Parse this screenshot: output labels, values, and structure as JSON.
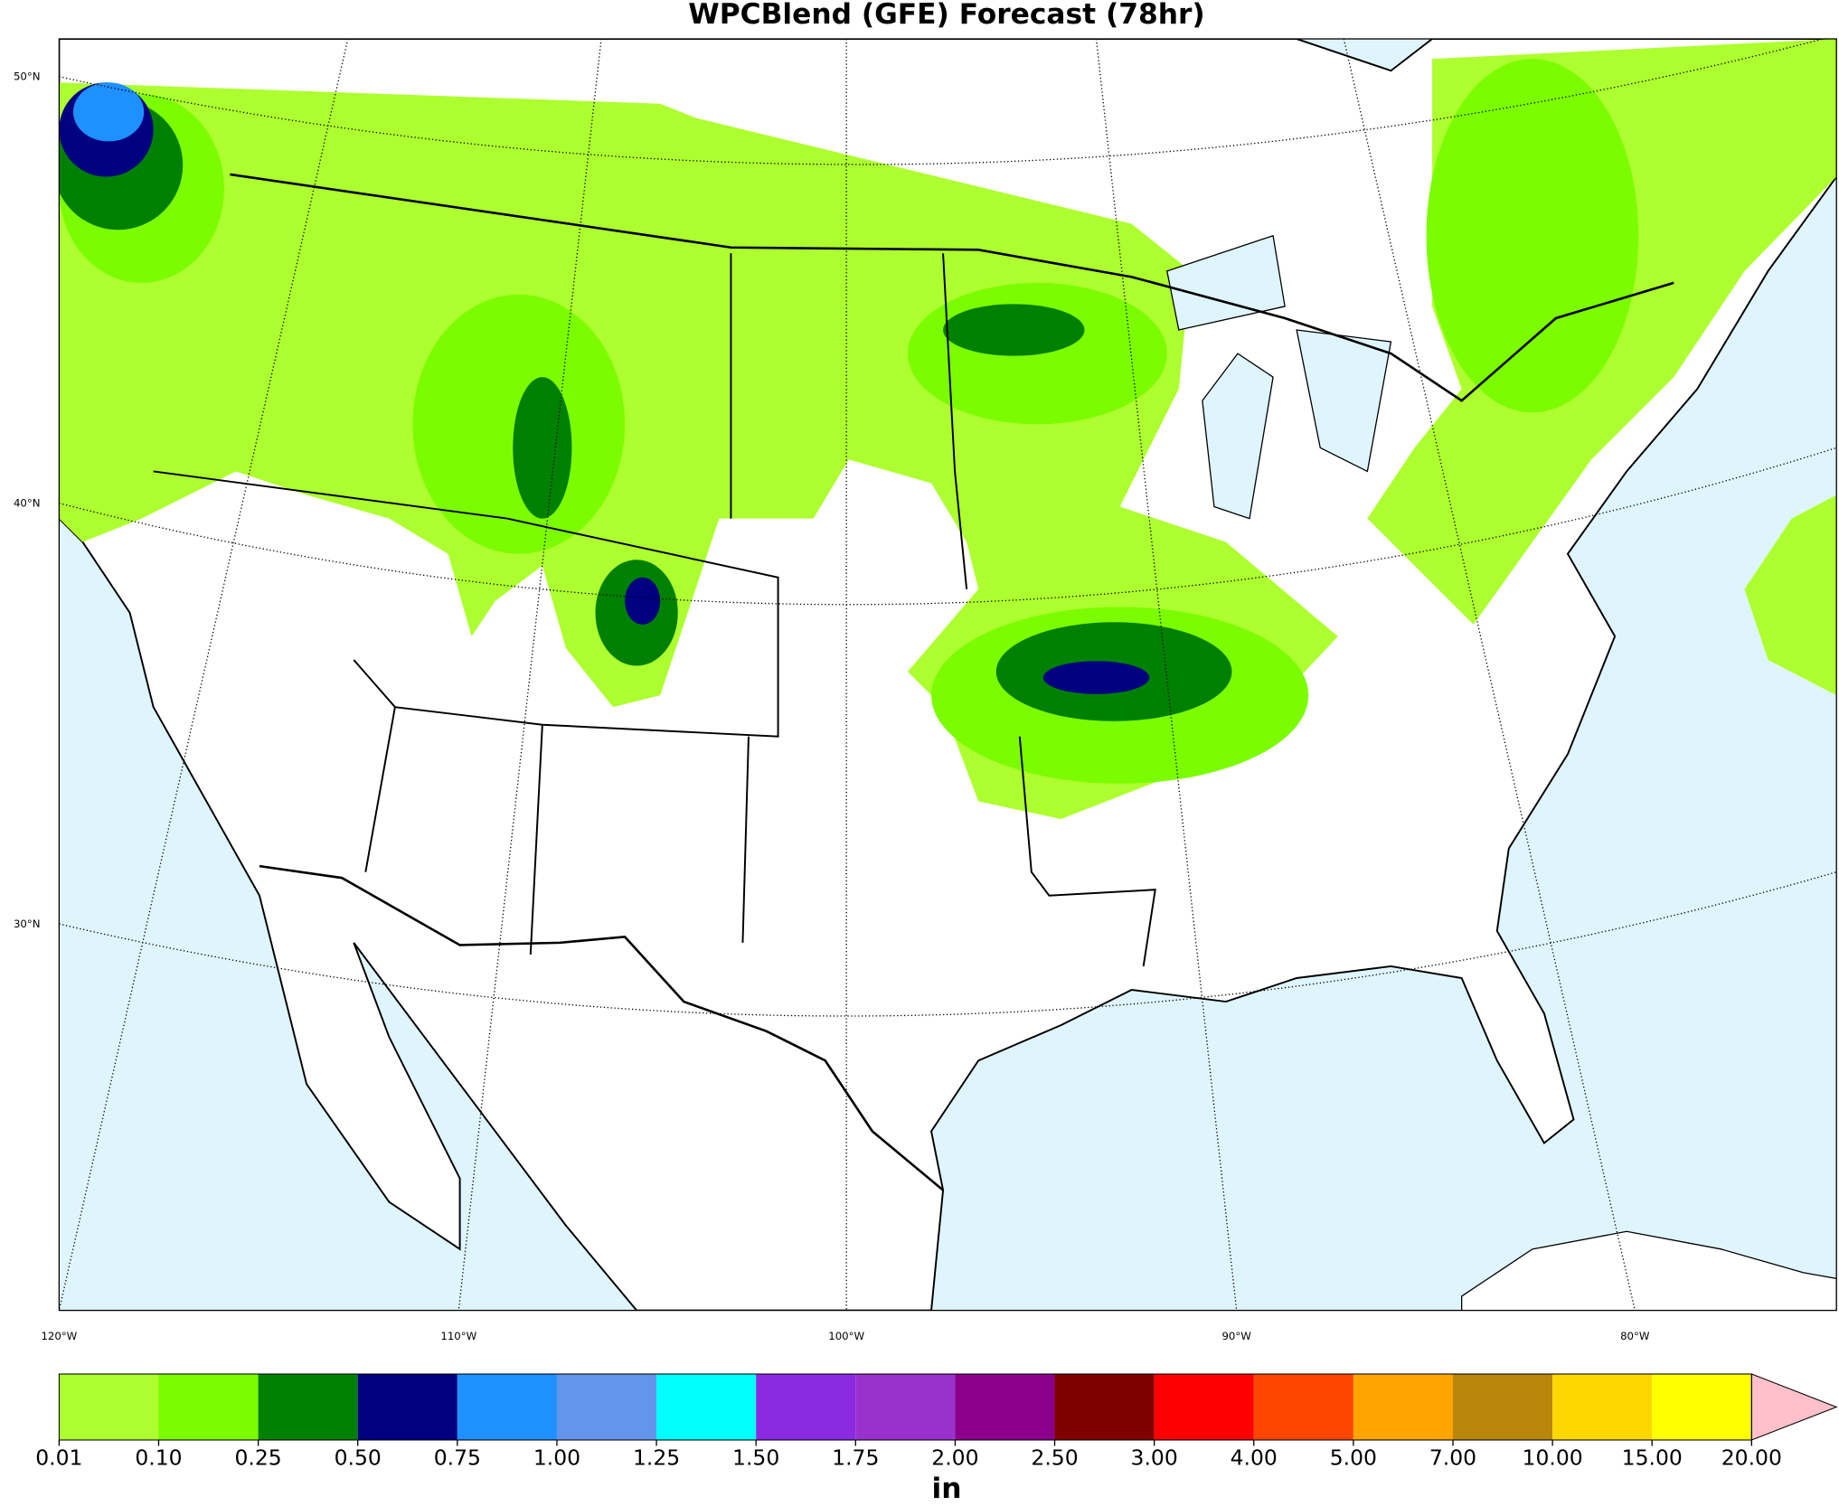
{
  "title": "WPCBlend (GFE) Forecast (78hr)",
  "lat_labels": [
    "50°N",
    "40°N",
    "30°N"
  ],
  "lon_labels": [
    "120°W",
    "110°W",
    "100°W",
    "90°W",
    "80°W"
  ],
  "colorbar": {
    "labels": [
      "0.01",
      "0.10",
      "0.25",
      "0.50",
      "0.75",
      "1.00",
      "1.25",
      "1.50",
      "1.75",
      "2.00",
      "2.50",
      "3.00",
      "4.00",
      "5.00",
      "7.00",
      "10.00",
      "15.00",
      "20.00"
    ],
    "colors": [
      "#adff2f",
      "#7cfc00",
      "#008000",
      "#000080",
      "#1e90ff",
      "#6495ed",
      "#00ffff",
      "#8a2be2",
      "#9932cc",
      "#8b008b",
      "#800000",
      "#ff0000",
      "#ff4500",
      "#ffa500",
      "#b8860b",
      "#ffd700",
      "#ffff00"
    ],
    "extend_color": "#ffc0cb",
    "unit": "in"
  }
}
